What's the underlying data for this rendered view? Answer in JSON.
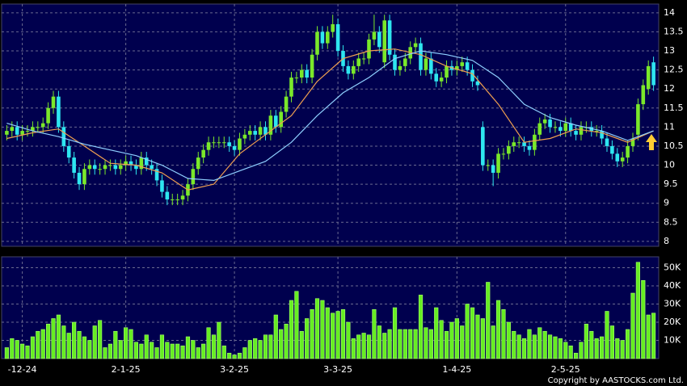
{
  "chart_data": {
    "type": "candlestick",
    "up_color": "#7ae82a",
    "down_color": "#2ee6f0",
    "xlim": [
      -1,
      126
    ],
    "xticks": [
      {
        "value": 3,
        "label": "-12-24"
      },
      {
        "value": 23,
        "label": "2-1-25"
      },
      {
        "value": 44,
        "label": "3-2-25"
      },
      {
        "value": 64,
        "label": "3-3-25"
      },
      {
        "value": 87,
        "label": "1-4-25"
      },
      {
        "value": 108,
        "label": "2-5-25"
      }
    ],
    "ylim": [
      7.87,
      14.23
    ],
    "yticks": [
      8,
      8.5,
      9,
      9.5,
      10,
      10.5,
      11,
      11.5,
      12,
      12.5,
      13,
      13.5,
      14
    ],
    "grid": true,
    "open": [
      10.8,
      10.9,
      11.0,
      10.8,
      10.9,
      10.9,
      11.0,
      11.0,
      11.1,
      11.5,
      11.8,
      11.0,
      10.5,
      10.2,
      9.8,
      9.5,
      9.9,
      10.0,
      9.9,
      9.9,
      10.0,
      10.0,
      9.9,
      10.0,
      10.1,
      10.0,
      9.9,
      10.2,
      10.0,
      9.9,
      9.6,
      9.3,
      9.1,
      9.1,
      9.1,
      9.2,
      9.5,
      9.9,
      10.2,
      10.4,
      10.6,
      10.6,
      10.6,
      10.6,
      10.5,
      10.4,
      10.7,
      10.8,
      10.9,
      10.8,
      11.0,
      10.8,
      11.3,
      11.0,
      11.4,
      11.8,
      12.3,
      12.3,
      12.5,
      12.3,
      12.9,
      13.5,
      13.2,
      13.5,
      13.7,
      13.0,
      12.6,
      12.4,
      12.6,
      12.8,
      12.8,
      13.3,
      13.5,
      12.7,
      13.8,
      12.9,
      12.5,
      12.6,
      12.8,
      13.1,
      13.2,
      12.5,
      12.8,
      12.4,
      12.2,
      12.3,
      12.6,
      12.5,
      12.6,
      12.7,
      12.5,
      12.2,
      11.0,
      10.0,
      10.0,
      9.8,
      10.3,
      10.3,
      10.5,
      10.6,
      10.6,
      10.5,
      10.4,
      10.8,
      11.1,
      11.2,
      11.0,
      11.0,
      10.9,
      11.1,
      10.9,
      10.8,
      11.0,
      11.0,
      10.9,
      10.9,
      10.7,
      10.5,
      10.3,
      10.1,
      10.2,
      10.5,
      10.8,
      11.6,
      12.0,
      12.7
    ],
    "high": [
      11.05,
      11.15,
      11.15,
      11.05,
      11.05,
      11.15,
      11.15,
      11.25,
      11.65,
      11.95,
      11.95,
      11.15,
      10.65,
      10.35,
      9.95,
      10.05,
      10.15,
      10.15,
      10.05,
      10.15,
      10.15,
      10.15,
      10.15,
      10.25,
      10.25,
      10.15,
      10.35,
      10.35,
      10.15,
      10.05,
      9.75,
      9.45,
      9.25,
      9.25,
      9.35,
      9.65,
      10.05,
      10.35,
      10.55,
      10.75,
      10.75,
      10.75,
      10.75,
      10.75,
      10.65,
      10.85,
      10.95,
      11.05,
      11.05,
      11.15,
      11.15,
      11.45,
      11.45,
      11.55,
      11.95,
      12.45,
      12.45,
      12.65,
      12.65,
      13.05,
      13.65,
      13.65,
      13.65,
      13.95,
      13.85,
      13.15,
      12.75,
      12.75,
      12.95,
      12.95,
      13.45,
      13.95,
      13.65,
      13.95,
      13.95,
      13.05,
      12.75,
      12.95,
      13.25,
      13.35,
      13.35,
      12.95,
      12.95,
      12.55,
      12.45,
      12.75,
      12.75,
      12.75,
      12.85,
      12.85,
      12.65,
      12.35,
      11.15,
      10.15,
      10.15,
      10.45,
      10.45,
      10.65,
      10.75,
      10.75,
      10.75,
      10.65,
      10.95,
      11.25,
      11.35,
      11.35,
      11.15,
      11.15,
      11.25,
      11.25,
      11.05,
      11.15,
      11.15,
      11.15,
      11.05,
      11.05,
      10.85,
      10.65,
      10.45,
      10.35,
      10.65,
      10.85,
      11.75,
      12.25,
      12.75,
      12.85
    ],
    "low": [
      10.65,
      10.75,
      10.65,
      10.65,
      10.75,
      10.75,
      10.85,
      10.85,
      10.95,
      11.35,
      10.85,
      10.35,
      10.05,
      9.65,
      9.35,
      9.35,
      9.75,
      9.75,
      9.75,
      9.75,
      9.85,
      9.75,
      9.75,
      9.85,
      9.85,
      9.75,
      9.75,
      9.85,
      9.75,
      9.45,
      9.15,
      8.95,
      8.95,
      8.95,
      8.95,
      9.05,
      9.35,
      9.75,
      10.05,
      10.25,
      10.45,
      10.45,
      10.45,
      10.35,
      10.25,
      10.25,
      10.55,
      10.65,
      10.65,
      10.65,
      10.65,
      10.65,
      10.85,
      10.85,
      11.25,
      11.65,
      12.15,
      12.15,
      12.15,
      12.15,
      12.75,
      13.05,
      13.05,
      13.35,
      12.85,
      12.45,
      12.25,
      12.25,
      12.45,
      12.65,
      12.65,
      13.15,
      12.95,
      12.55,
      12.75,
      12.35,
      12.35,
      12.45,
      12.65,
      12.95,
      12.35,
      12.35,
      12.25,
      12.05,
      12.05,
      12.15,
      12.35,
      12.35,
      12.45,
      12.35,
      12.05,
      11.95,
      9.85,
      9.85,
      9.45,
      9.65,
      10.15,
      10.15,
      10.35,
      10.45,
      10.35,
      10.25,
      10.25,
      10.65,
      10.95,
      10.85,
      10.85,
      10.75,
      10.75,
      10.75,
      10.65,
      10.65,
      10.85,
      10.75,
      10.75,
      10.55,
      10.35,
      10.15,
      9.95,
      9.95,
      10.05,
      10.35,
      10.65,
      11.45,
      11.85,
      11.95
    ],
    "close": [
      10.9,
      11.0,
      10.8,
      10.9,
      10.9,
      11.0,
      11.0,
      11.1,
      11.5,
      11.8,
      11.0,
      10.5,
      10.2,
      9.8,
      9.5,
      9.9,
      10.0,
      9.9,
      9.9,
      10.0,
      10.0,
      9.9,
      10.0,
      10.1,
      10.0,
      9.9,
      10.2,
      10.0,
      9.9,
      9.6,
      9.3,
      9.1,
      9.1,
      9.1,
      9.2,
      9.5,
      9.9,
      10.2,
      10.4,
      10.6,
      10.6,
      10.6,
      10.6,
      10.5,
      10.4,
      10.7,
      10.8,
      10.9,
      10.8,
      11.0,
      10.8,
      11.3,
      11.0,
      11.4,
      11.8,
      12.3,
      12.3,
      12.5,
      12.3,
      12.9,
      13.5,
      13.2,
      13.5,
      13.7,
      13.0,
      12.6,
      12.4,
      12.6,
      12.8,
      12.8,
      13.3,
      13.5,
      13.1,
      13.8,
      12.9,
      12.5,
      12.6,
      12.8,
      13.1,
      13.2,
      12.5,
      12.8,
      12.4,
      12.2,
      12.3,
      12.6,
      12.5,
      12.6,
      12.7,
      12.5,
      12.2,
      12.1,
      10.0,
      10.0,
      9.8,
      10.3,
      10.3,
      10.5,
      10.6,
      10.6,
      10.5,
      10.4,
      10.8,
      11.1,
      11.2,
      11.0,
      11.0,
      10.9,
      11.1,
      10.9,
      10.8,
      11.0,
      11.0,
      10.9,
      10.9,
      10.7,
      10.5,
      10.3,
      10.1,
      10.2,
      10.5,
      10.7,
      11.6,
      12.1,
      12.6,
      12.1
    ],
    "ma": [
      {
        "color": "#f0a050",
        "x": [
          0,
          5,
          10,
          15,
          20,
          25,
          30,
          35,
          40,
          45,
          50,
          55,
          60,
          65,
          70,
          75,
          80,
          85,
          90,
          95,
          100,
          105,
          110,
          115,
          120,
          125
        ],
        "values": [
          10.7,
          10.85,
          10.95,
          10.5,
          10.05,
          10.0,
          9.8,
          9.35,
          9.5,
          10.3,
          10.8,
          11.3,
          12.2,
          12.8,
          13.0,
          13.05,
          12.9,
          12.6,
          12.4,
          11.6,
          10.6,
          10.7,
          10.95,
          10.85,
          10.6,
          10.9
        ]
      },
      {
        "color": "#8fd0ff",
        "x": [
          0,
          5,
          10,
          15,
          20,
          25,
          30,
          35,
          40,
          45,
          50,
          55,
          60,
          65,
          70,
          75,
          80,
          85,
          90,
          95,
          100,
          105,
          110,
          115,
          120,
          125
        ],
        "values": [
          11.1,
          10.9,
          10.75,
          10.55,
          10.4,
          10.25,
          10.0,
          9.65,
          9.6,
          9.85,
          10.1,
          10.6,
          11.3,
          11.9,
          12.3,
          12.8,
          13.0,
          12.9,
          12.75,
          12.3,
          11.6,
          11.25,
          11.05,
          10.9,
          10.65,
          10.9
        ]
      }
    ],
    "volume": {
      "color": "#66ee22",
      "ylim": [
        0,
        56
      ],
      "yticks": [
        {
          "value": 10,
          "label": "10K"
        },
        {
          "value": 20,
          "label": "20K"
        },
        {
          "value": 30,
          "label": "30K"
        },
        {
          "value": 40,
          "label": "40K"
        },
        {
          "value": 50,
          "label": "50K"
        }
      ],
      "values": [
        6,
        11,
        10,
        8,
        7,
        12,
        15,
        16,
        19,
        22,
        24,
        18,
        14,
        20,
        15,
        12,
        10,
        18,
        21,
        6,
        8,
        15,
        10,
        17,
        16,
        9,
        8,
        13,
        9,
        6,
        13,
        9,
        8,
        8,
        7,
        12,
        10,
        6,
        8,
        17,
        13,
        20,
        7,
        3,
        2,
        3,
        6,
        10,
        11,
        10,
        13,
        13,
        24,
        16,
        19,
        32,
        37,
        15,
        22,
        27,
        33,
        32,
        28,
        25,
        26,
        27,
        20,
        11,
        13,
        14,
        13,
        27,
        18,
        14,
        16,
        28,
        16,
        16,
        16,
        16,
        35,
        17,
        16,
        28,
        21,
        15,
        20,
        22,
        18,
        30,
        28,
        24,
        22,
        42,
        18,
        32,
        27,
        20,
        15,
        13,
        11,
        16,
        13,
        17,
        15,
        13,
        12,
        11,
        9,
        7,
        3,
        9,
        19,
        15,
        11,
        12,
        26,
        18,
        11,
        10,
        16,
        36,
        53,
        43,
        24,
        25
      ]
    },
    "copyright": "Copyright by AASTOCKS.com Ltd."
  }
}
